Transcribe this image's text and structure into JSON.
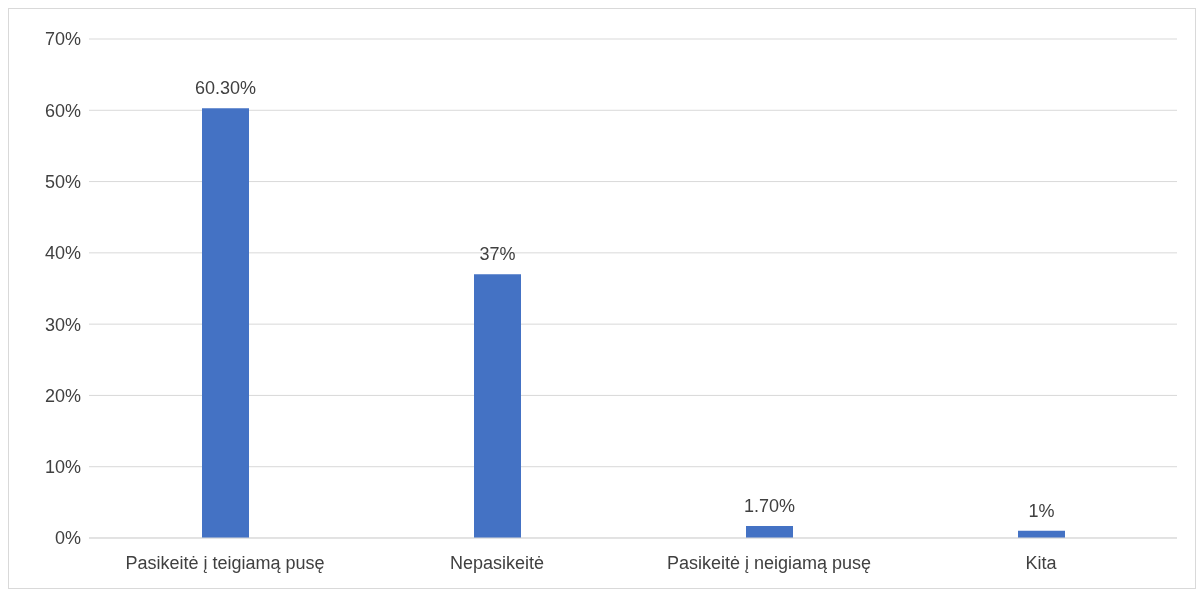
{
  "chart_data": {
    "type": "bar",
    "categories": [
      "Pasikeitė į teigiamą pusę",
      "Nepasikeitė",
      "Pasikeitė į neigiamą pusę",
      "Kita"
    ],
    "values": [
      60.3,
      37,
      1.7,
      1
    ],
    "value_labels": [
      "60.30%",
      "37%",
      "1.70%",
      "1%"
    ],
    "color": "#4472c4",
    "ylim": [
      0,
      70
    ],
    "yticks": [
      {
        "value": 0,
        "label": "0%"
      },
      {
        "value": 10,
        "label": "10%"
      },
      {
        "value": 20,
        "label": "20%"
      },
      {
        "value": 30,
        "label": "30%"
      },
      {
        "value": 40,
        "label": "40%"
      },
      {
        "value": 50,
        "label": "50%"
      },
      {
        "value": 60,
        "label": "60%"
      },
      {
        "value": 70,
        "label": "70%"
      }
    ],
    "grid": "y"
  }
}
